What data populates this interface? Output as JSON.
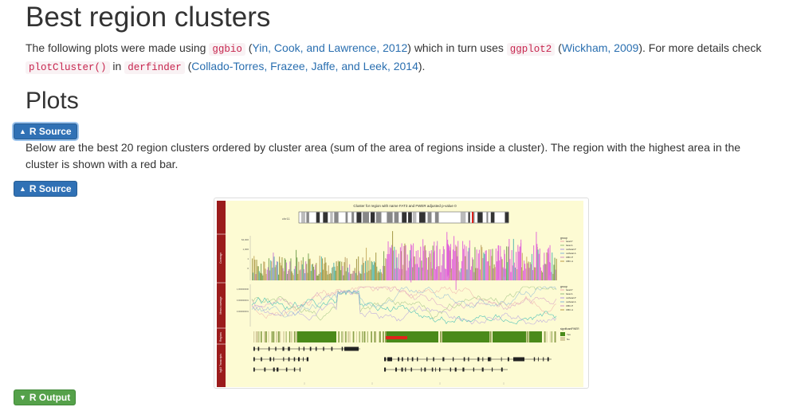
{
  "page": {
    "title": "Best region clusters",
    "intro": {
      "t1": "The following plots were made using ",
      "code1": "ggbio",
      "t2": " (",
      "link1": "Yin, Cook, and Lawrence, 2012",
      "t3": ") which in turn uses ",
      "code2": "ggplot2",
      "t4": " (",
      "link2": "Wickham, 2009",
      "t5": "). For more details check ",
      "code3": "plotCluster()",
      "t6": " in ",
      "code4": "derfinder",
      "t7": " (",
      "link3": "Collado-Torres, Frazee, Jaffe, and Leek, 2014",
      "t8": ")."
    },
    "section_title": "Plots",
    "source_button_1": "R Source",
    "description": "Below are the best 20 region clusters ordered by cluster area (sum of the area of regions inside a cluster). The region with the highest area in the cluster is shown with a red bar.",
    "source_button_2": "R Source",
    "output_button": "R Output"
  },
  "figure": {
    "title": "Cluster for region with name FAT3 and FWER adjusted p-value 0",
    "ideogram_label": "chr11",
    "track_labels": [
      "Coverage",
      "Mean coverage",
      "Regions",
      "hg19 Transcripts"
    ],
    "coverage_ticks": [
      "64,000",
      "1,000",
      "1",
      "0"
    ],
    "mean_ticks": [
      "1,000000000",
      "0.000000001",
      "0.000000001"
    ],
    "legend_group_title": "group",
    "legend_groups": [
      "fetal.P",
      "fetal.A",
      "notfetal.P",
      "notfetal.A",
      "CBC.P",
      "CBC.A"
    ],
    "legend_regions_title": "significantFWER",
    "legend_regions": [
      "Yes",
      "No"
    ],
    "colors": {
      "panel_bg": "#fdfbd3",
      "strip": "#9b1b1b",
      "region_green": "#4a8a1a",
      "highlight_red": "#e0231b",
      "pink": "#e060d8",
      "teal": "#3fbcb5"
    }
  }
}
